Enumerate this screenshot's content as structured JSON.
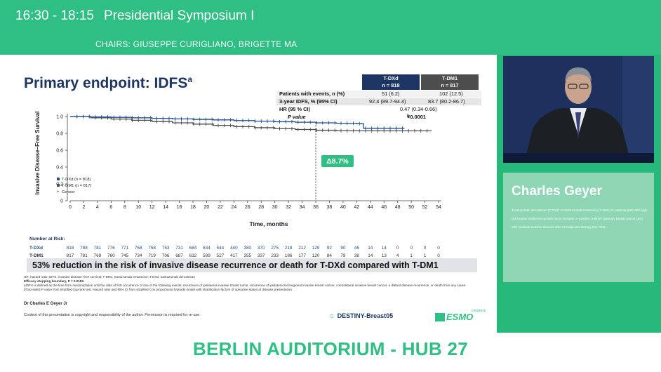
{
  "header": {
    "time": "16:30 - 18:15",
    "session": "Presidential Symposium I",
    "chairs": "CHAIRS: GIUSEPPE CURIGLIANO, BRIGETTE MA"
  },
  "slide": {
    "title": "Primary endpoint: IDFS",
    "title_sup": "a",
    "table": {
      "col1_name": "T-DXd",
      "col1_n": "n = 818",
      "col2_name": "T-DM1",
      "col2_n": "n = 817",
      "rows": [
        {
          "label": "Patients with events, n (%)",
          "v1": "51 (6.2)",
          "v2": "102 (12.5)"
        },
        {
          "label": "3-year IDFS, % (95% CI)",
          "v1": "92.4 (89.7-94.4)",
          "v2": "83.7 (80.2-86.7)"
        },
        {
          "label": "HR (95 % CI)",
          "v1": "0.47 (0.34-0.66)",
          "v2": ""
        },
        {
          "label": "P value",
          "v1": "<0.0001",
          "v1_sup": "b",
          "v2": ""
        }
      ]
    },
    "chart": {
      "ylabel": "Invasive Disease–Free Survival",
      "xlabel": "Time, months",
      "yticks": [
        "1.0",
        "0.8",
        "0.6",
        "0.4",
        "0.2",
        "0"
      ],
      "xticks": [
        "0",
        "2",
        "4",
        "6",
        "8",
        "10",
        "12",
        "14",
        "16",
        "18",
        "20",
        "22",
        "24",
        "26",
        "28",
        "30",
        "32",
        "34",
        "36",
        "38",
        "40",
        "42",
        "44",
        "46",
        "48",
        "50",
        "52",
        "54"
      ],
      "legend": [
        "T-DXd (n = 818)",
        "T-DM1 (n = 817)",
        "Censor"
      ],
      "delta_label": "Δ8.7%",
      "at_risk_title": "Number at Risk:",
      "at_risk": [
        {
          "label": "T-DXd",
          "values": [
            "818",
            "788",
            "781",
            "776",
            "771",
            "768",
            "758",
            "753",
            "731",
            "684",
            "634",
            "544",
            "440",
            "380",
            "370",
            "275",
            "218",
            "212",
            "129",
            "92",
            "90",
            "46",
            "14",
            "14",
            "0",
            "0",
            "0",
            "0"
          ]
        },
        {
          "label": "T-DM1",
          "values": [
            "817",
            "781",
            "769",
            "760",
            "745",
            "734",
            "719",
            "706",
            "687",
            "632",
            "599",
            "527",
            "417",
            "355",
            "337",
            "233",
            "186",
            "177",
            "120",
            "84",
            "79",
            "38",
            "14",
            "13",
            "4",
            "1",
            "1",
            "0"
          ]
        }
      ]
    },
    "banner": "53% reduction in the risk of invasive disease recurrence or death for T-DXd compared with T-DM1",
    "footnote1": "HR, hazard ratio; IDFS, invasive disease–free survival; T-DM1, trastuzumab emtansine; T-DXd, trastuzumab deruxtecan.",
    "footnote2": "Efficacy stopping boundary, P = 0.0183.",
    "footnote3": "aIDFS is defined as the time from randomization until the date of first occurrence of one of the following events: recurrence of ipsilateral invasive breast tumor, recurrence of ipsilateral locoregional invasive breast cancer, contralateral invasive breast cancer, a distant disease recurrence, or death from any cause. bTwo-sided P value from stratified log-rank test. Hazard ratio and 95% CI from stratified Cox proportional hazards model with stratification factors of operative status at disease presentation.",
    "author": "Dr Charles E Geyer Jr",
    "copyright": "Content of this presentation is copyright and responsibility of the author. Permission is required for re-use.",
    "logo_destiny": "DESTINY-Breast05",
    "logo_esmo": "ESMO",
    "logo_esmo_small": "congress"
  },
  "speaker": {
    "name": "Charles Geyer",
    "description": "Trastuzumab deruxtecan (T-DXd) vs trastuzumab emtansine (T-DM1) in patients (pts) with high-risk human epidermal growth factor receptor 2–positive (HER2+) primary breast cancer (BC) with residual invasive disease after neoadjuvant therapy (tx): Inter..."
  },
  "venue": "BERLIN AUDITORIUM - HUB 27",
  "colors": {
    "accent": "#2fbf84",
    "tdxd": "#1f4e8c",
    "tdm1": "#4d4d4d",
    "title": "#1c3563"
  }
}
